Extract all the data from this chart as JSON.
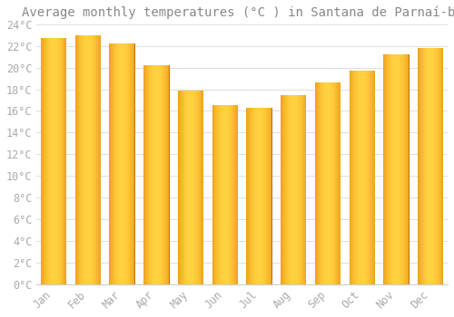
{
  "title": "Average monthly temperatures (°C ) in Santana de Parnaí-ba",
  "months": [
    "Jan",
    "Feb",
    "Mar",
    "Apr",
    "May",
    "Jun",
    "Jul",
    "Aug",
    "Sep",
    "Oct",
    "Nov",
    "Dec"
  ],
  "values": [
    22.7,
    23.0,
    22.2,
    20.2,
    17.9,
    16.5,
    16.3,
    17.5,
    18.6,
    19.7,
    21.2,
    21.8
  ],
  "bar_color_left": "#FFB800",
  "bar_color_center": "#FFCC44",
  "bar_color_right": "#E8860A",
  "ylim": [
    0,
    24
  ],
  "ytick_step": 2,
  "background_color": "#FFFFFF",
  "grid_color": "#DDDDDD",
  "title_fontsize": 10,
  "tick_fontsize": 8.5,
  "font_color": "#AAAAAA",
  "title_color": "#888888"
}
